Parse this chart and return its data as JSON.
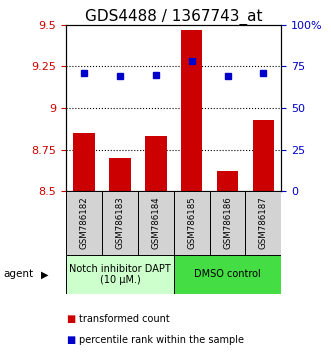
{
  "title": "GDS4488 / 1367743_at",
  "samples": [
    "GSM786182",
    "GSM786183",
    "GSM786184",
    "GSM786185",
    "GSM786186",
    "GSM786187"
  ],
  "bar_values": [
    8.85,
    8.7,
    8.83,
    9.47,
    8.62,
    8.93
  ],
  "percentile_values": [
    71,
    69,
    70,
    78,
    69,
    71
  ],
  "ylim_left": [
    8.5,
    9.5
  ],
  "ylim_right": [
    0,
    100
  ],
  "yticks_left": [
    8.5,
    8.75,
    9.0,
    9.25,
    9.5
  ],
  "ytick_labels_left": [
    "8.5",
    "8.75",
    "9",
    "9.25",
    "9.5"
  ],
  "yticks_right": [
    0,
    25,
    50,
    75,
    100
  ],
  "ytick_labels_right": [
    "0",
    "25",
    "50",
    "75",
    "100%"
  ],
  "hlines": [
    8.75,
    9.0,
    9.25
  ],
  "bar_color": "#cc0000",
  "dot_color": "#0000cc",
  "bar_width": 0.6,
  "group1_label": "Notch inhibitor DAPT\n(10 μM.)",
  "group2_label": "DMSO control",
  "group1_color": "#ccffcc",
  "group2_color": "#44dd44",
  "group1_indices": [
    0,
    1,
    2
  ],
  "group2_indices": [
    3,
    4,
    5
  ],
  "agent_label": "agent",
  "legend_bar_label": "transformed count",
  "legend_dot_label": "percentile rank within the sample",
  "title_fontsize": 11,
  "tick_fontsize": 8,
  "label_fontsize": 7.5,
  "group_fontsize": 7,
  "legend_fontsize": 7
}
